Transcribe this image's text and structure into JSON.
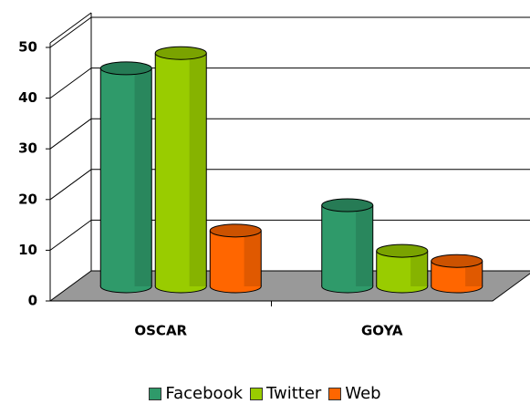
{
  "chart_data": {
    "type": "bar3d",
    "categories": [
      "OSCAR",
      "GOYA"
    ],
    "series": [
      {
        "name": "Facebook",
        "color": "#2f9a6a",
        "values": [
          43,
          16
        ]
      },
      {
        "name": "Twitter",
        "color": "#99cc00",
        "values": [
          46,
          7
        ]
      },
      {
        "name": "Web",
        "color": "#ff6600",
        "values": [
          11,
          5
        ]
      }
    ],
    "ylim": [
      0,
      50
    ],
    "yticks": [
      0,
      10,
      20,
      30,
      40,
      50
    ],
    "grid": true,
    "legend": "bottom"
  }
}
